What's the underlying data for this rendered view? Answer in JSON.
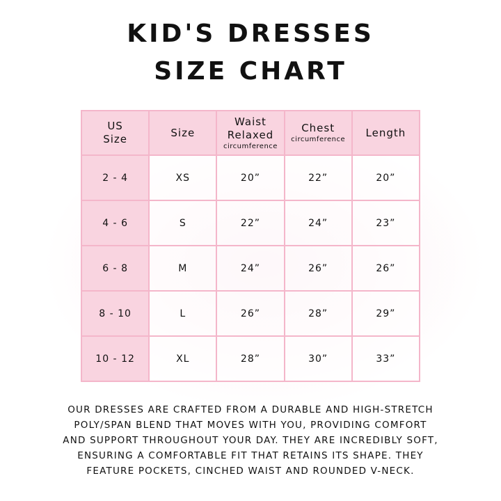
{
  "header": {
    "title": "KID'S DRESSES",
    "subtitle": "SIZE CHART"
  },
  "table": {
    "columns": [
      {
        "lines": [
          "US",
          "Size"
        ]
      },
      {
        "lines": [
          "Size"
        ]
      },
      {
        "lines": [
          "Waist",
          "Relaxed"
        ],
        "note": "circumference"
      },
      {
        "lines": [
          "Chest"
        ],
        "note": "circumference"
      },
      {
        "lines": [
          "Length"
        ]
      }
    ],
    "rows": [
      [
        "2 - 4",
        "XS",
        "20”",
        "22”",
        "20”"
      ],
      [
        "4 - 6",
        "S",
        "22”",
        "24”",
        "23”"
      ],
      [
        "6 - 8",
        "M",
        "24”",
        "26”",
        "26”"
      ],
      [
        "8 - 10",
        "L",
        "26”",
        "28”",
        "29”"
      ],
      [
        "10 - 12",
        "XL",
        "28”",
        "30”",
        "33”"
      ]
    ]
  },
  "description": {
    "lines": [
      "OUR DRESSES ARE CRAFTED FROM A DURABLE AND HIGH-STRETCH",
      "POLY/SPAN BLEND THAT MOVES WITH YOU, PROVIDING COMFORT",
      "AND SUPPORT THROUGHOUT YOUR DAY. THEY ARE INCREDIBLY SOFT,",
      "ENSURING A COMFORTABLE FIT THAT RETAINS ITS SHAPE. THEY",
      "FEATURE POCKETS, CINCHED WAIST AND ROUNDED V-NECK."
    ]
  }
}
